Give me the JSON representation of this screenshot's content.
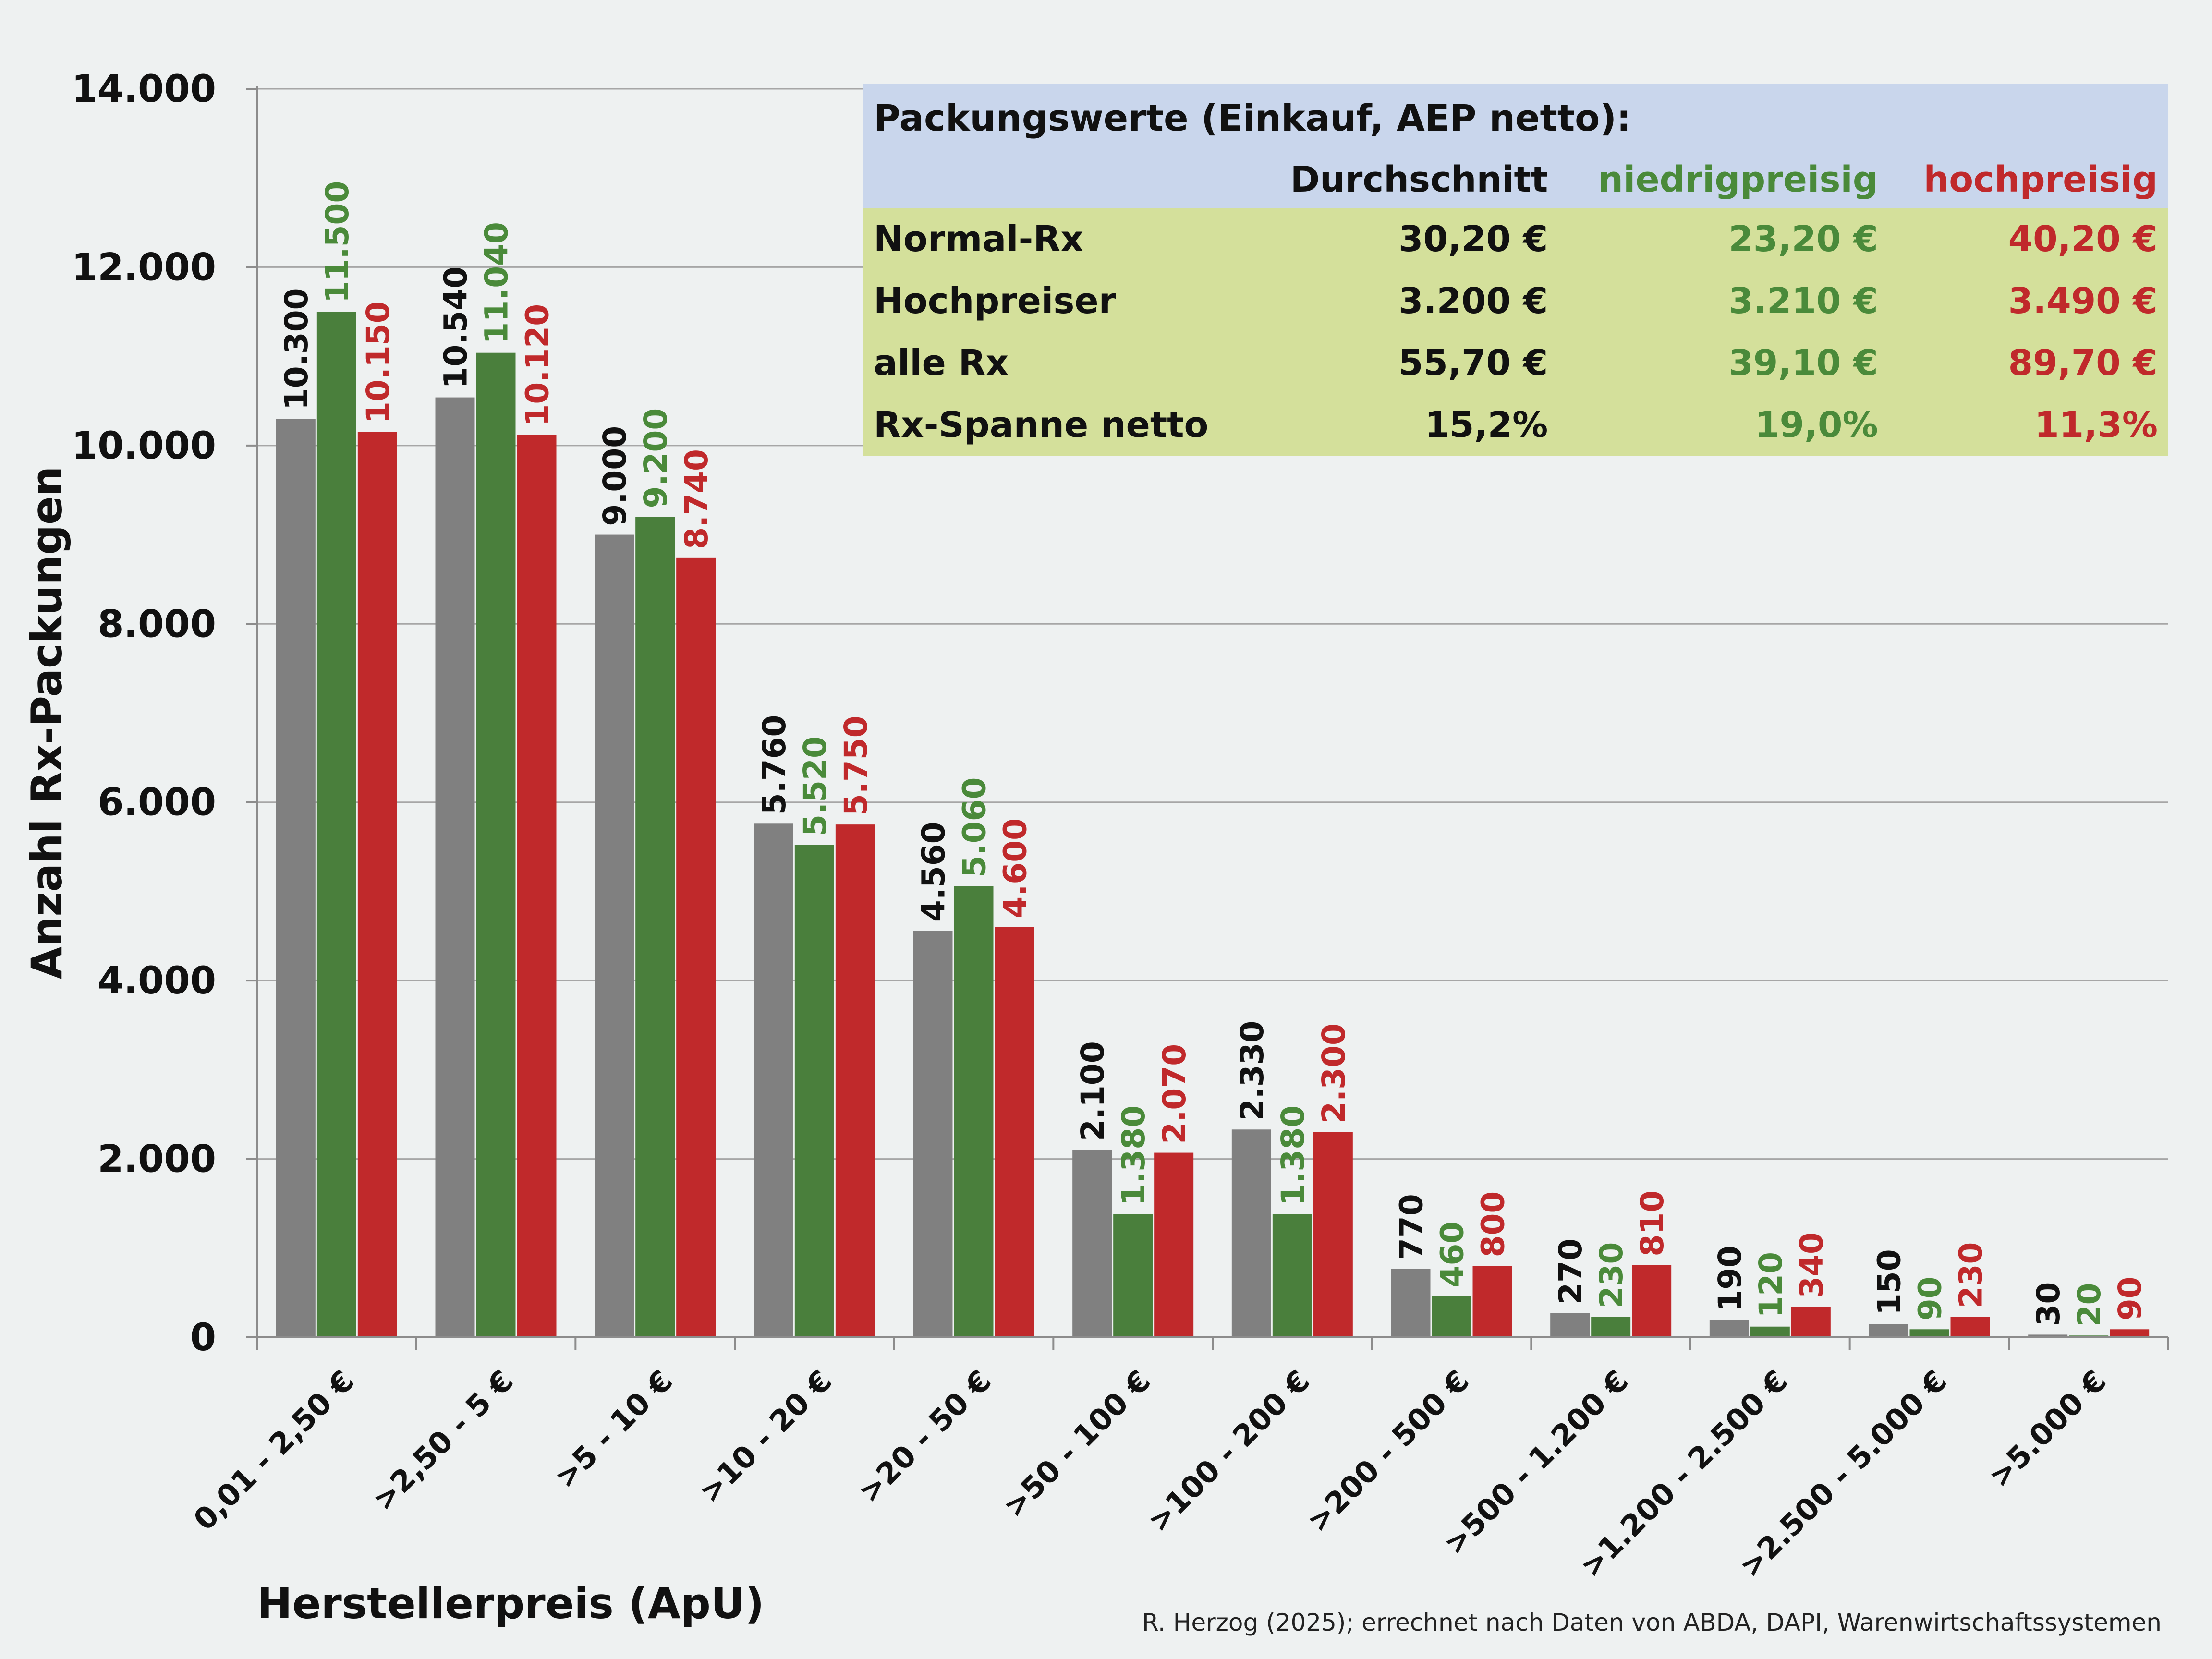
{
  "chart_data": {
    "type": "bar",
    "ylabel": "Anzahl Rx-Packungen",
    "xlabel": "Herstellerpreis (ApU)",
    "ylim": [
      0,
      14000
    ],
    "yticks": [
      0,
      2000,
      4000,
      6000,
      8000,
      10000,
      12000,
      14000
    ],
    "ytick_labels": [
      "0",
      "2.000",
      "4.000",
      "6.000",
      "8.000",
      "10.000",
      "12.000",
      "14.000"
    ],
    "grid": true,
    "categories": [
      "0,01 - 2,50 €",
      ">2,50 - 5 €",
      ">5 - 10 €",
      ">10 - 20 €",
      ">20 - 50 €",
      ">50 - 100 €",
      ">100 - 200 €",
      ">200 - 500 €",
      ">500 - 1.200 €",
      ">1.200 - 2.500 €",
      ">2.500 - 5.000 €",
      ">5.000 €"
    ],
    "series": [
      {
        "name": "Durchschnitt",
        "color": "#808080",
        "label_color": "#111111",
        "values": [
          10300,
          10540,
          9000,
          5760,
          4560,
          2100,
          2330,
          770,
          270,
          190,
          150,
          30
        ],
        "labels": [
          "10.300",
          "10.540",
          "9.000",
          "5.760",
          "4.560",
          "2.100",
          "2.330",
          "770",
          "270",
          "190",
          "150",
          "30"
        ]
      },
      {
        "name": "niedrigpreisig",
        "color": "#4a7f3c",
        "label_color": "#4a8a3a",
        "values": [
          11500,
          11040,
          9200,
          5520,
          5060,
          1380,
          1380,
          460,
          230,
          120,
          90,
          20
        ],
        "labels": [
          "11.500",
          "11.040",
          "9.200",
          "5.520",
          "5.060",
          "1.380",
          "1.380",
          "460",
          "230",
          "120",
          "90",
          "20"
        ]
      },
      {
        "name": "hochpreisig",
        "color": "#c0292b",
        "label_color": "#c0292b",
        "values": [
          10150,
          10120,
          8740,
          5750,
          4600,
          2070,
          2300,
          800,
          810,
          340,
          230,
          90
        ],
        "labels": [
          "10.150",
          "10.120",
          "8.740",
          "5.750",
          "4.600",
          "2.070",
          "2.300",
          "800",
          "810",
          "340",
          "230",
          "90"
        ]
      }
    ]
  },
  "table": {
    "title": "Packungswerte (Einkauf, AEP netto):",
    "columns": [
      "Durchschnitt",
      "niedrigpreisig",
      "hochpreisig"
    ],
    "rows": [
      {
        "label": "Normal-Rx",
        "values": [
          "30,20 €",
          "23,20 €",
          "40,20 €"
        ]
      },
      {
        "label": "Hochpreiser",
        "values": [
          "3.200 €",
          "3.210 €",
          "3.490 €"
        ]
      },
      {
        "label": "alle Rx",
        "values": [
          "55,70 €",
          "39,10 €",
          "89,70 €"
        ]
      },
      {
        "label": "Rx-Spanne netto",
        "values": [
          "15,2%",
          "19,0%",
          "11,3%"
        ]
      }
    ]
  },
  "source": "R. Herzog (2025); errechnet nach Daten von ABDA, DAPI,  Warenwirtschaftssystemen",
  "colors": {
    "background": "#eef1f1",
    "grid": "#a6a6a6",
    "table_header": "#c9d6ec",
    "table_body": "#d4e09b"
  }
}
